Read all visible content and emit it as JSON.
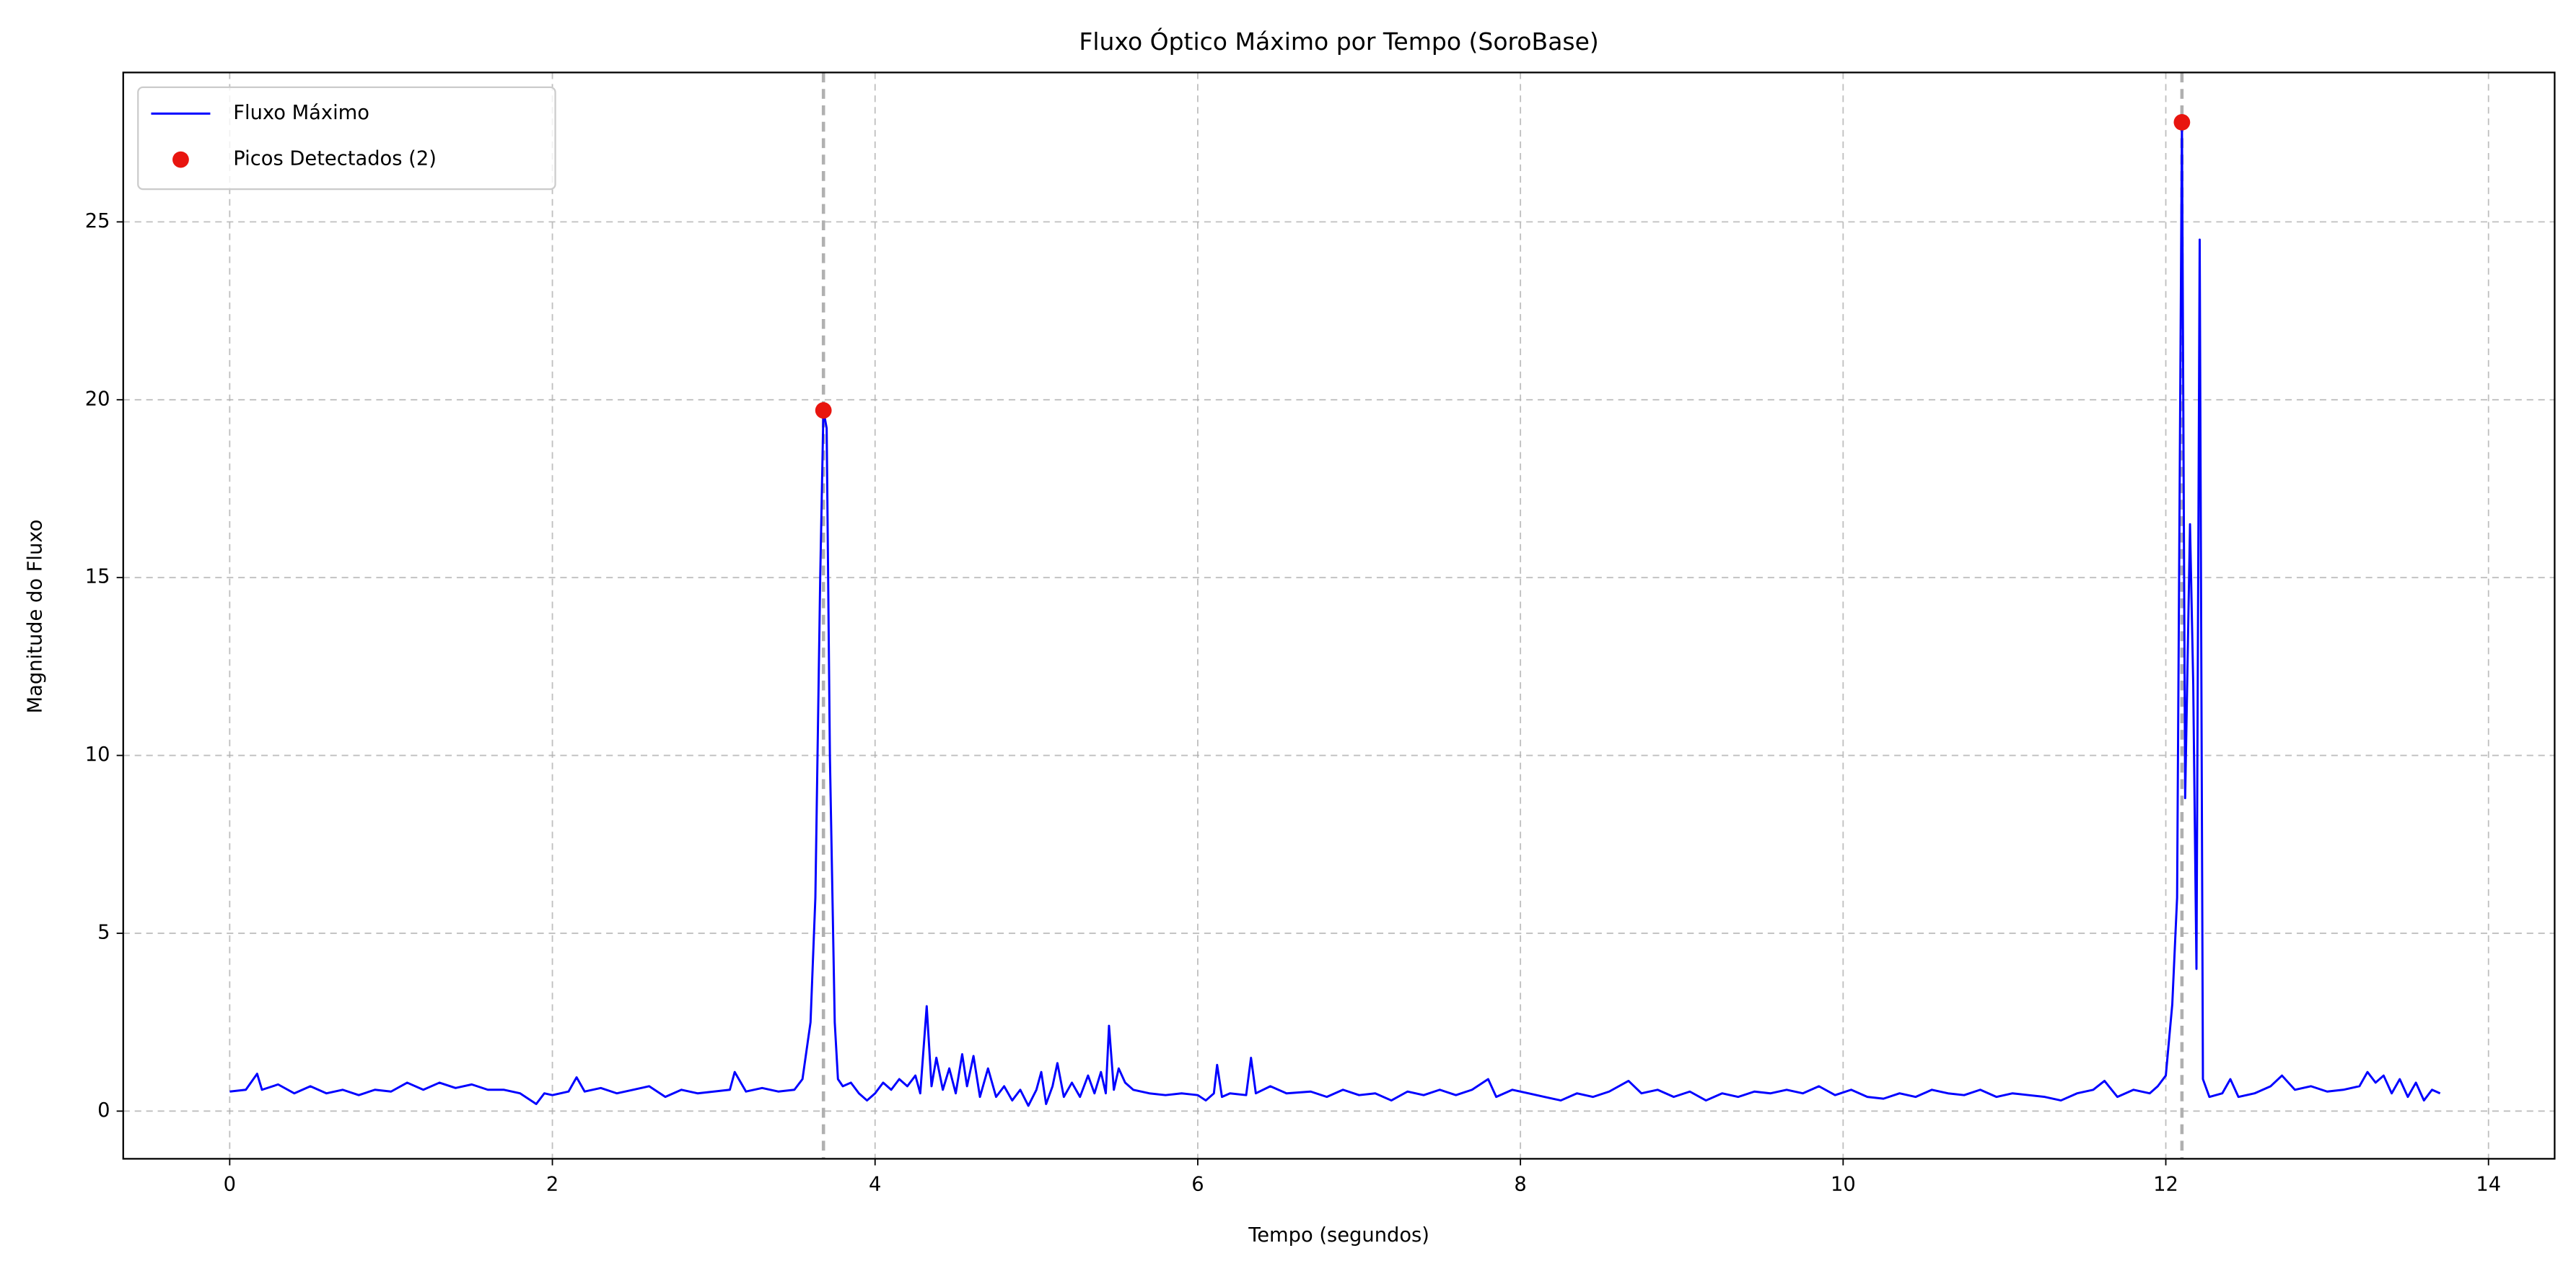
{
  "chart_data": {
    "type": "line",
    "title": "Fluxo Óptico Máximo por Tempo (SoroBase)",
    "xlabel": "Tempo (segundos)",
    "ylabel": "Magnitude do Fluxo",
    "xlim": [
      -0.66,
      14.41
    ],
    "ylim": [
      -1.34,
      29.2
    ],
    "xticks": [
      0,
      2,
      4,
      6,
      8,
      10,
      12,
      14
    ],
    "yticks": [
      0,
      5,
      10,
      15,
      20,
      25
    ],
    "grid": true,
    "legend": "upper left",
    "series": [
      {
        "name": "Fluxo Máximo",
        "color": "#0000ff",
        "x": [
          0.0,
          0.1,
          0.17,
          0.2,
          0.3,
          0.4,
          0.5,
          0.6,
          0.7,
          0.8,
          0.9,
          1.0,
          1.1,
          1.2,
          1.3,
          1.4,
          1.5,
          1.6,
          1.7,
          1.8,
          1.9,
          1.95,
          2.0,
          2.1,
          2.15,
          2.2,
          2.3,
          2.4,
          2.5,
          2.6,
          2.7,
          2.8,
          2.9,
          3.0,
          3.1,
          3.13,
          3.2,
          3.3,
          3.4,
          3.5,
          3.55,
          3.6,
          3.63,
          3.66,
          3.68,
          3.7,
          3.72,
          3.75,
          3.77,
          3.8,
          3.85,
          3.9,
          3.95,
          4.0,
          4.05,
          4.1,
          4.15,
          4.2,
          4.25,
          4.28,
          4.32,
          4.35,
          4.38,
          4.42,
          4.46,
          4.5,
          4.54,
          4.57,
          4.61,
          4.65,
          4.7,
          4.75,
          4.8,
          4.85,
          4.9,
          4.95,
          5.0,
          5.03,
          5.06,
          5.1,
          5.13,
          5.17,
          5.22,
          5.27,
          5.32,
          5.36,
          5.4,
          5.43,
          5.45,
          5.48,
          5.51,
          5.55,
          5.6,
          5.7,
          5.8,
          5.9,
          6.0,
          6.05,
          6.1,
          6.12,
          6.15,
          6.2,
          6.3,
          6.33,
          6.36,
          6.45,
          6.55,
          6.7,
          6.8,
          6.9,
          7.0,
          7.1,
          7.2,
          7.3,
          7.4,
          7.5,
          7.6,
          7.7,
          7.8,
          7.85,
          7.95,
          8.05,
          8.15,
          8.25,
          8.35,
          8.45,
          8.55,
          8.67,
          8.75,
          8.85,
          8.95,
          9.05,
          9.15,
          9.25,
          9.35,
          9.45,
          9.55,
          9.65,
          9.75,
          9.85,
          9.95,
          10.05,
          10.15,
          10.25,
          10.35,
          10.45,
          10.55,
          10.65,
          10.75,
          10.85,
          10.95,
          11.05,
          11.15,
          11.25,
          11.35,
          11.45,
          11.55,
          11.62,
          11.7,
          11.8,
          11.9,
          11.95,
          12.0,
          12.04,
          12.07,
          12.1,
          12.12,
          12.15,
          12.17,
          12.19,
          12.21,
          12.23,
          12.27,
          12.35,
          12.4,
          12.45,
          12.55,
          12.65,
          12.72,
          12.8,
          12.9,
          13.0,
          13.1,
          13.2,
          13.25,
          13.3,
          13.35,
          13.4,
          13.45,
          13.5,
          13.55,
          13.6,
          13.65,
          13.7
        ],
        "values": [
          0.55,
          0.6,
          1.05,
          0.6,
          0.75,
          0.5,
          0.7,
          0.5,
          0.6,
          0.45,
          0.6,
          0.55,
          0.8,
          0.6,
          0.8,
          0.65,
          0.75,
          0.6,
          0.6,
          0.5,
          0.2,
          0.5,
          0.45,
          0.55,
          0.95,
          0.55,
          0.65,
          0.5,
          0.6,
          0.7,
          0.4,
          0.6,
          0.5,
          0.55,
          0.6,
          1.1,
          0.55,
          0.65,
          0.55,
          0.6,
          0.9,
          2.5,
          6,
          15,
          19.7,
          19.2,
          10,
          2.5,
          0.9,
          0.7,
          0.8,
          0.5,
          0.3,
          0.5,
          0.8,
          0.6,
          0.9,
          0.7,
          1.0,
          0.5,
          2.95,
          0.7,
          1.5,
          0.6,
          1.2,
          0.5,
          1.6,
          0.7,
          1.55,
          0.4,
          1.2,
          0.4,
          0.7,
          0.3,
          0.6,
          0.15,
          0.6,
          1.1,
          0.2,
          0.7,
          1.35,
          0.4,
          0.8,
          0.4,
          1.0,
          0.5,
          1.1,
          0.5,
          2.4,
          0.6,
          1.2,
          0.8,
          0.6,
          0.5,
          0.45,
          0.5,
          0.45,
          0.3,
          0.5,
          1.3,
          0.4,
          0.5,
          0.45,
          1.5,
          0.5,
          0.7,
          0.5,
          0.55,
          0.4,
          0.6,
          0.45,
          0.5,
          0.3,
          0.55,
          0.45,
          0.6,
          0.45,
          0.6,
          0.9,
          0.4,
          0.6,
          0.5,
          0.4,
          0.3,
          0.5,
          0.4,
          0.55,
          0.85,
          0.5,
          0.6,
          0.4,
          0.55,
          0.3,
          0.5,
          0.4,
          0.55,
          0.5,
          0.6,
          0.5,
          0.7,
          0.45,
          0.6,
          0.4,
          0.35,
          0.5,
          0.4,
          0.6,
          0.5,
          0.45,
          0.6,
          0.4,
          0.5,
          0.45,
          0.4,
          0.3,
          0.5,
          0.6,
          0.85,
          0.4,
          0.6,
          0.5,
          0.7,
          1.0,
          3,
          6,
          27.8,
          8.8,
          16.5,
          12,
          4.0,
          24.5,
          0.9,
          0.4,
          0.5,
          0.9,
          0.4,
          0.5,
          0.7,
          1.0,
          0.6,
          0.7,
          0.55,
          0.6,
          0.7,
          1.1,
          0.8,
          1.0,
          0.5,
          0.9,
          0.4,
          0.8,
          0.3,
          0.6,
          0.5
        ]
      },
      {
        "name": "Picos Detectados (2)",
        "color": "#e8150f",
        "marker": "o",
        "x": [
          3.68,
          12.1
        ],
        "values": [
          19.7,
          27.8
        ]
      }
    ]
  }
}
